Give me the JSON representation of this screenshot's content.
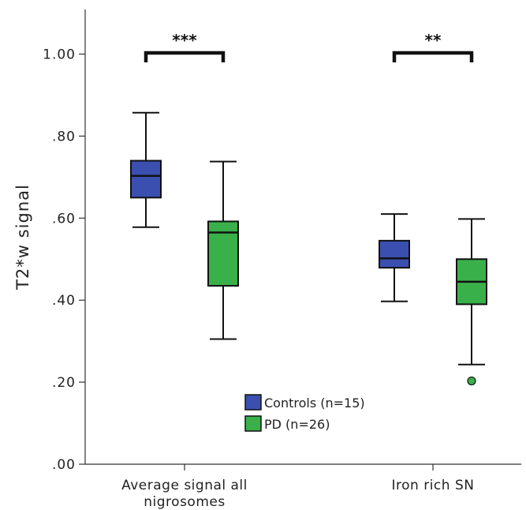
{
  "chart_data": {
    "type": "box",
    "ylabel": "T2*w signal",
    "ylim": [
      0,
      1.1
    ],
    "yticks": [
      0,
      0.2,
      0.4,
      0.6,
      0.8,
      1.0
    ],
    "ytick_labels": [
      ".00",
      ".20",
      ".40",
      ".60",
      ".80",
      "1.00"
    ],
    "categories": [
      {
        "line1": "Average signal all",
        "line2": "nigrosomes"
      },
      {
        "line1": "Iron rich SN",
        "line2": ""
      }
    ],
    "series": [
      {
        "name": "Controls (n=15)",
        "color": "#3a4fb0",
        "boxes": [
          {
            "min": 0.578,
            "q1": 0.65,
            "median": 0.703,
            "q3": 0.74,
            "max": 0.857,
            "outliers": []
          },
          {
            "min": 0.397,
            "q1": 0.479,
            "median": 0.502,
            "q3": 0.545,
            "max": 0.61,
            "outliers": []
          }
        ]
      },
      {
        "name": "PD (n=26)",
        "color": "#3ab04a",
        "boxes": [
          {
            "min": 0.305,
            "q1": 0.435,
            "median": 0.565,
            "q3": 0.592,
            "max": 0.738,
            "outliers": []
          },
          {
            "min": 0.243,
            "q1": 0.39,
            "median": 0.445,
            "q3": 0.5,
            "max": 0.598,
            "outliers": [
              0.203
            ]
          }
        ]
      }
    ],
    "significance": [
      {
        "category_index": 0,
        "label": "***"
      },
      {
        "category_index": 1,
        "label": "**"
      }
    ],
    "legend_position": "bottom-center",
    "grid": false
  }
}
